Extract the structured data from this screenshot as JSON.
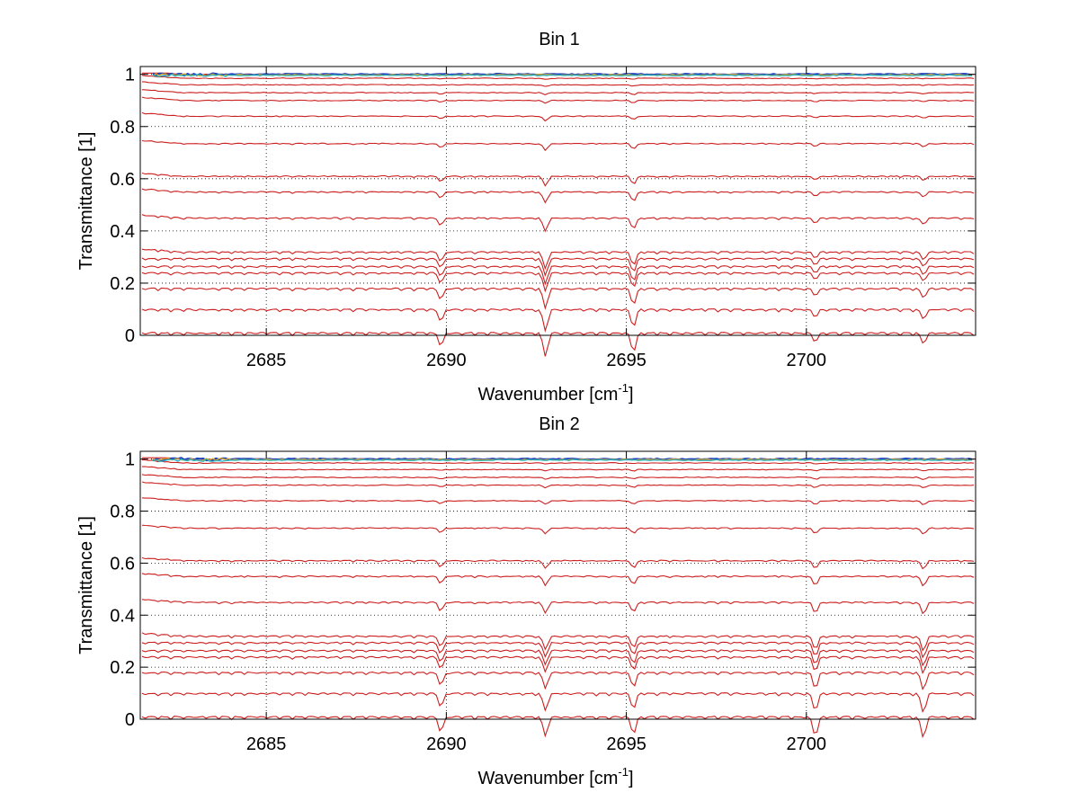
{
  "chart_data": [
    {
      "type": "line",
      "title": "Bin 1",
      "xlabel": "Wavenumber [cm",
      "xlabel_sup": "-1",
      "xlabel_suffix": "]",
      "ylabel": "Transmittance [1]",
      "xlim": [
        2681.5,
        2704.7
      ],
      "ylim": [
        0,
        1.03
      ],
      "xticks": [
        2685,
        2690,
        2695,
        2700
      ],
      "xtick_labels": [
        "2685",
        "2690",
        "2695",
        "2700"
      ],
      "yticks": [
        0,
        0.2,
        0.4,
        0.6,
        0.8,
        1
      ],
      "ytick_labels": [
        "0",
        "0.2",
        "0.4",
        "0.6",
        "0.8",
        "1"
      ],
      "grid": true,
      "series_color": "#cc1f1f",
      "top_series_colors": [
        "#1f3fbf",
        "#e0b020",
        "#20b0c0"
      ],
      "baselines": [
        1.0,
        0.985,
        0.96,
        0.93,
        0.9,
        0.84,
        0.735,
        0.61,
        0.55,
        0.45,
        0.32,
        0.295,
        0.265,
        0.24,
        0.18,
        0.1,
        0.01
      ],
      "absorption_lines": [
        {
          "x": 2689.85,
          "depth": 0.03
        },
        {
          "x": 2692.75,
          "depth": 0.055
        },
        {
          "x": 2695.2,
          "depth": 0.045
        },
        {
          "x": 2700.25,
          "depth": 0.02
        },
        {
          "x": 2703.25,
          "depth": 0.025
        }
      ]
    },
    {
      "type": "line",
      "title": "Bin 2",
      "xlabel": "Wavenumber [cm",
      "xlabel_sup": "-1",
      "xlabel_suffix": "]",
      "ylabel": "Transmittance [1]",
      "xlim": [
        2681.5,
        2704.7
      ],
      "ylim": [
        0,
        1.03
      ],
      "xticks": [
        2685,
        2690,
        2695,
        2700
      ],
      "xtick_labels": [
        "2685",
        "2690",
        "2695",
        "2700"
      ],
      "yticks": [
        0,
        0.2,
        0.4,
        0.6,
        0.8,
        1
      ],
      "ytick_labels": [
        "0",
        "0.2",
        "0.4",
        "0.6",
        "0.8",
        "1"
      ],
      "grid": true,
      "series_color": "#cc1f1f",
      "top_series_colors": [
        "#1f3fbf",
        "#e0b020",
        "#20b0c0"
      ],
      "baselines": [
        1.0,
        0.985,
        0.96,
        0.93,
        0.9,
        0.84,
        0.735,
        0.61,
        0.55,
        0.45,
        0.32,
        0.295,
        0.265,
        0.24,
        0.18,
        0.1,
        0.01
      ],
      "absorption_lines": [
        {
          "x": 2689.85,
          "depth": 0.035
        },
        {
          "x": 2692.75,
          "depth": 0.045
        },
        {
          "x": 2695.2,
          "depth": 0.04
        },
        {
          "x": 2700.25,
          "depth": 0.045
        },
        {
          "x": 2703.25,
          "depth": 0.05
        }
      ]
    }
  ]
}
